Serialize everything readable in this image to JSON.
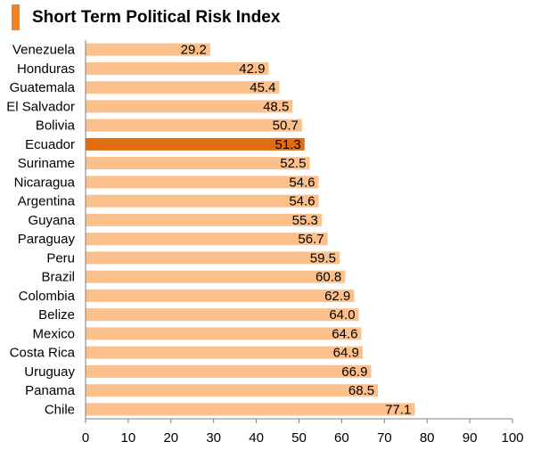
{
  "title": "Short Term Political Risk Index",
  "colors": {
    "bar": "#fbc08c",
    "highlight": "#e06e0f",
    "accent": "#f58220",
    "axis": "#7f7f7f",
    "text": "#000000"
  },
  "chart_data": {
    "type": "bar",
    "orientation": "horizontal",
    "title": "Short Term Political Risk Index",
    "xlabel": "",
    "ylabel": "",
    "xlim": [
      0,
      100
    ],
    "xticks": [
      0,
      10,
      20,
      30,
      40,
      50,
      60,
      70,
      80,
      90,
      100
    ],
    "grid": false,
    "highlight": "Ecuador",
    "categories": [
      "Venezuela",
      "Honduras",
      "Guatemala",
      "El Salvador",
      "Bolivia",
      "Ecuador",
      "Suriname",
      "Nicaragua",
      "Argentina",
      "Guyana",
      "Paraguay",
      "Peru",
      "Brazil",
      "Colombia",
      "Belize",
      "Mexico",
      "Costa Rica",
      "Uruguay",
      "Panama",
      "Chile"
    ],
    "values": [
      29.2,
      42.9,
      45.4,
      48.5,
      50.7,
      51.3,
      52.5,
      54.6,
      54.6,
      55.3,
      56.7,
      59.5,
      60.8,
      62.9,
      64.0,
      64.6,
      64.9,
      66.9,
      68.5,
      77.1
    ],
    "value_labels": [
      "29.2",
      "42.9",
      "45.4",
      "48.5",
      "50.7",
      "51.3",
      "52.5",
      "54.6",
      "54.6",
      "55.3",
      "56.7",
      "59.5",
      "60.8",
      "62.9",
      "64.0",
      "64.6",
      "64.9",
      "66.9",
      "68.5",
      "77.1"
    ]
  }
}
